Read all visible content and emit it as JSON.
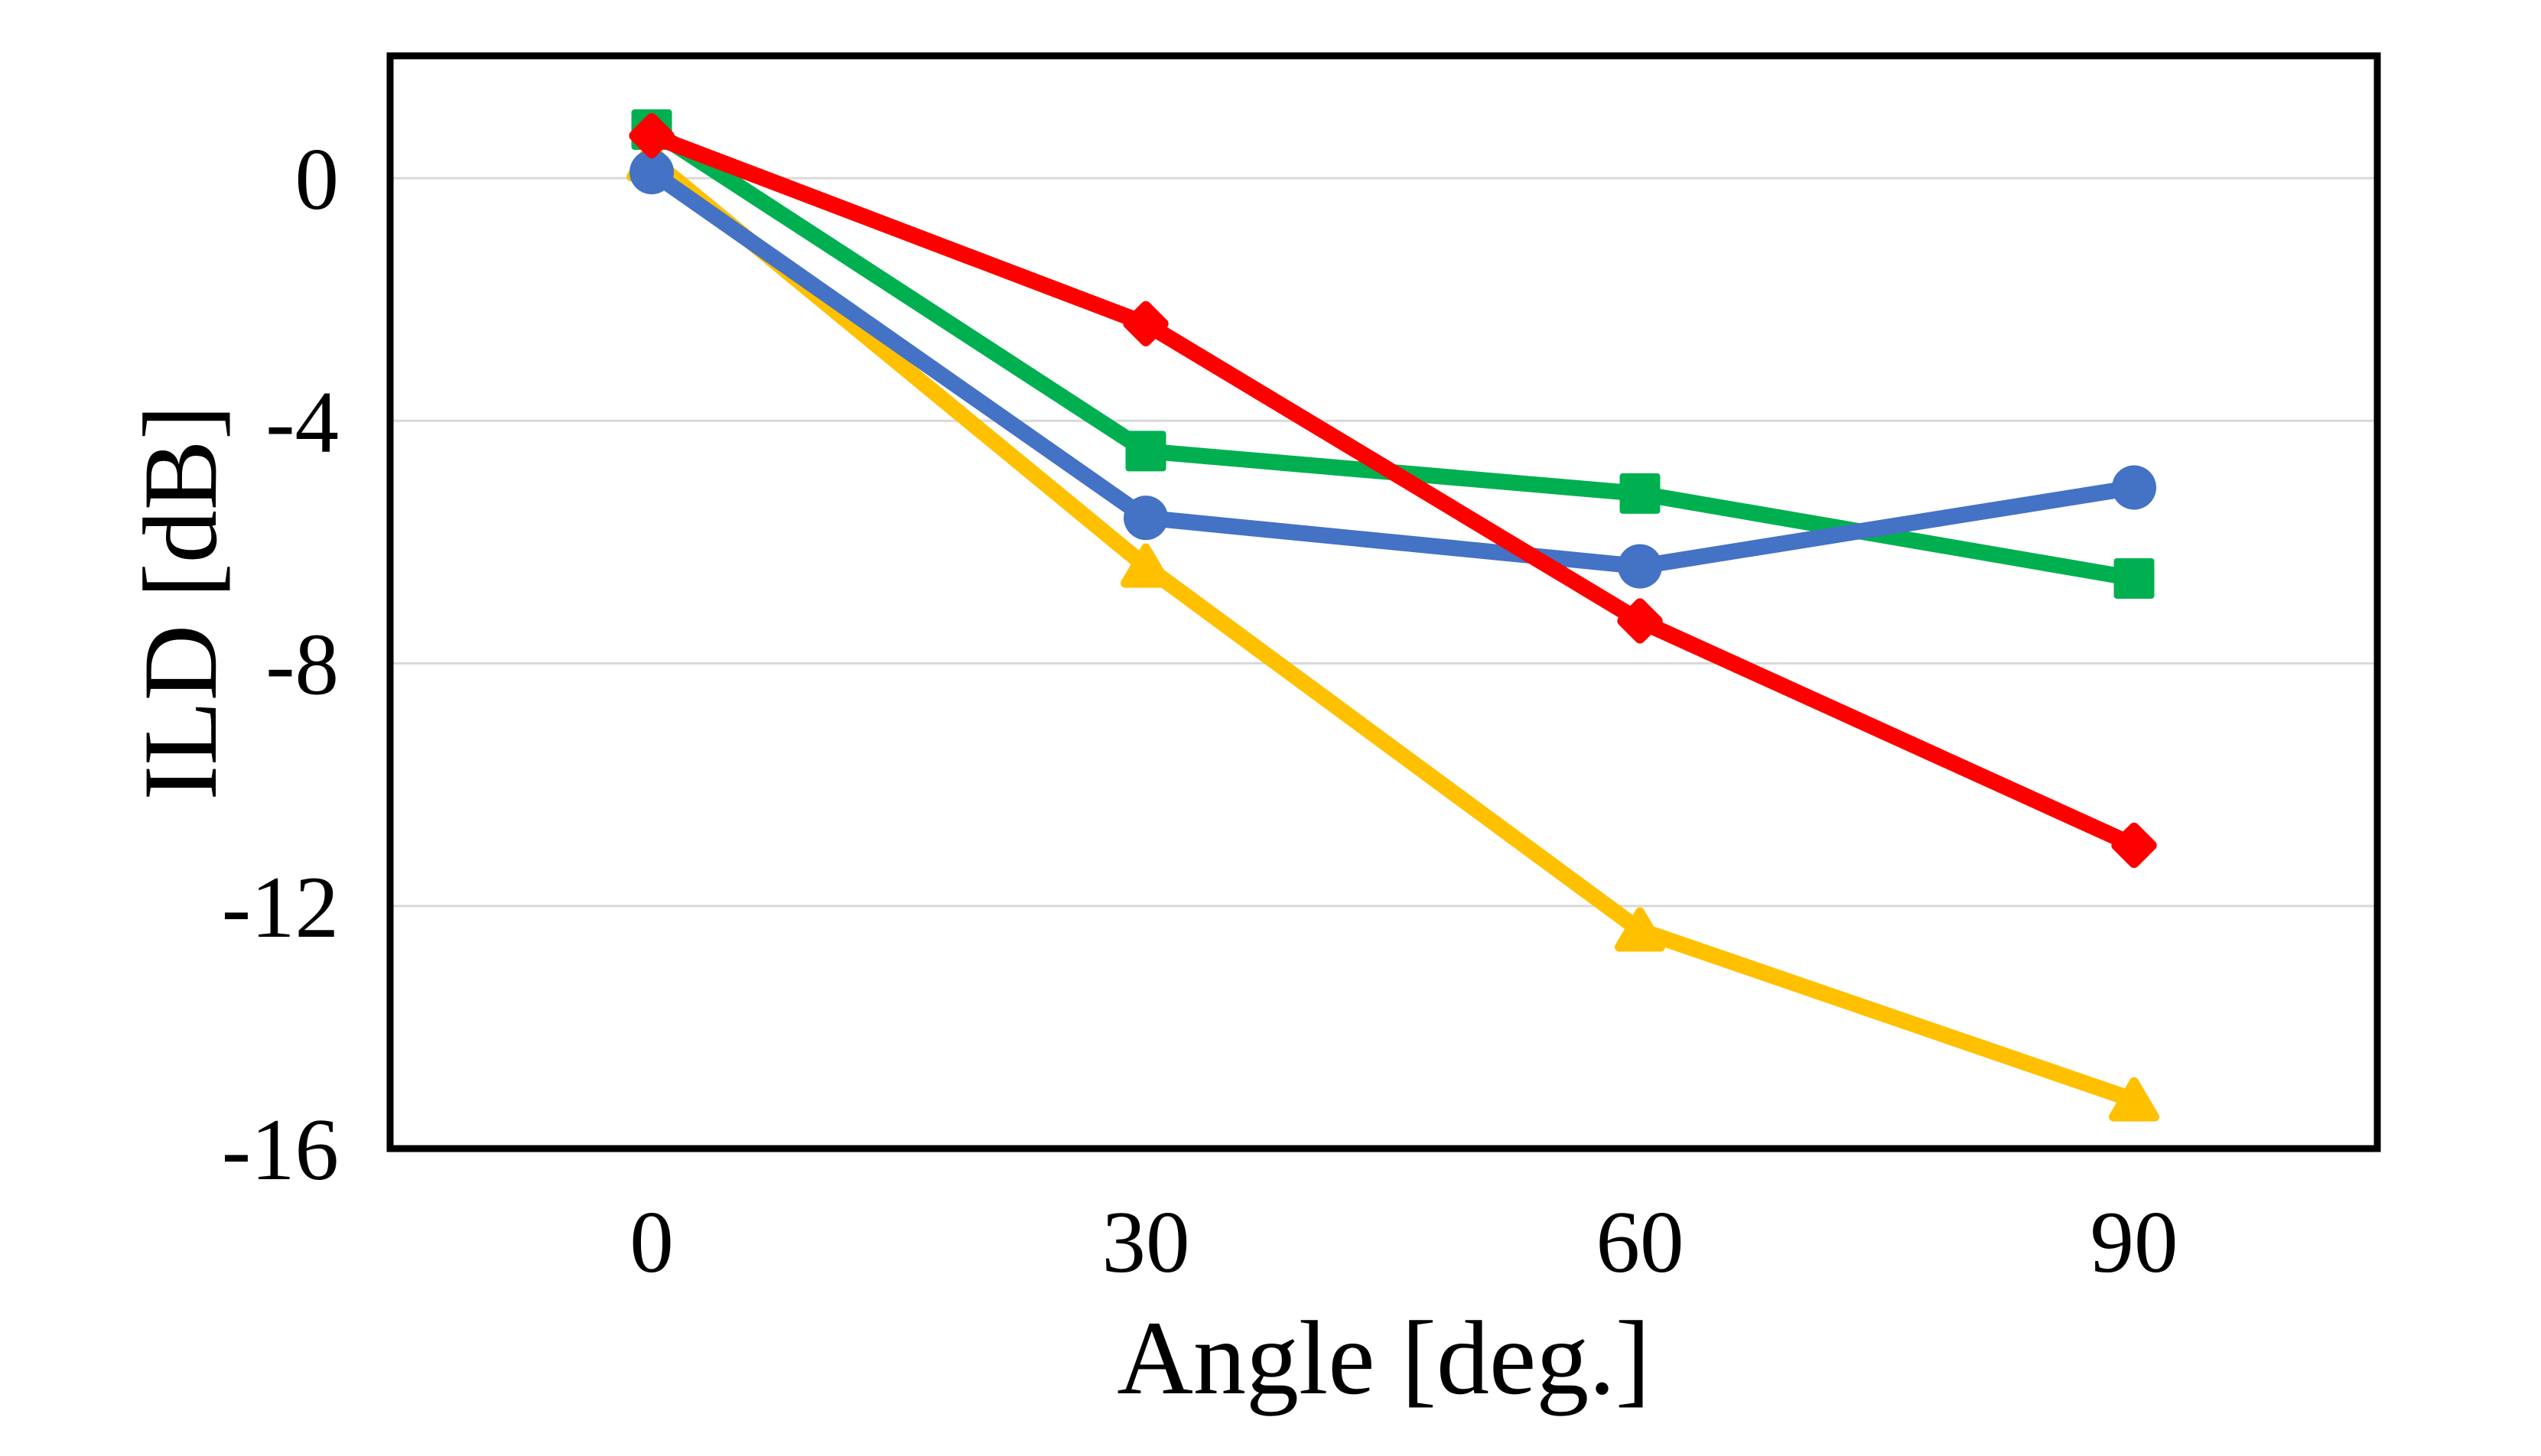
{
  "figure": {
    "background": "#FFFFFF",
    "frame_color": "#000000",
    "gridline_color": "#D9D9D9",
    "text_color": "#000000"
  },
  "chart_data": {
    "type": "line",
    "title": "",
    "xlabel": "Angle [deg.]",
    "ylabel": "ILD [dB]",
    "x": [
      0,
      30,
      60,
      90
    ],
    "x_tick_labels": [
      "0",
      "30",
      "60",
      "90"
    ],
    "y_ticks": [
      0,
      -4,
      -8,
      -12,
      -16
    ],
    "y_tick_labels": [
      "0",
      "-4",
      "-8",
      "-12",
      "-16"
    ],
    "xlim": [
      -16,
      105
    ],
    "ylim": [
      -16,
      2
    ],
    "grid": "horizontal-major",
    "legend": "none",
    "series": [
      {
        "name": "green-square-series",
        "marker": "square",
        "color": "#00B050",
        "values": [
          0.8,
          -4.5,
          -5.2,
          -6.6
        ]
      },
      {
        "name": "yellow-triangle-series",
        "marker": "triangle",
        "color": "#FFC000",
        "values": [
          0.3,
          -6.4,
          -12.4,
          -15.2
        ]
      },
      {
        "name": "blue-circle-series",
        "marker": "circle",
        "color": "#4472C4",
        "values": [
          0.1,
          -5.6,
          -6.4,
          -5.1
        ]
      },
      {
        "name": "red-diamond-series",
        "marker": "diamond",
        "color": "#FF0000",
        "values": [
          0.7,
          -2.4,
          -7.3,
          -11.0
        ]
      }
    ]
  }
}
